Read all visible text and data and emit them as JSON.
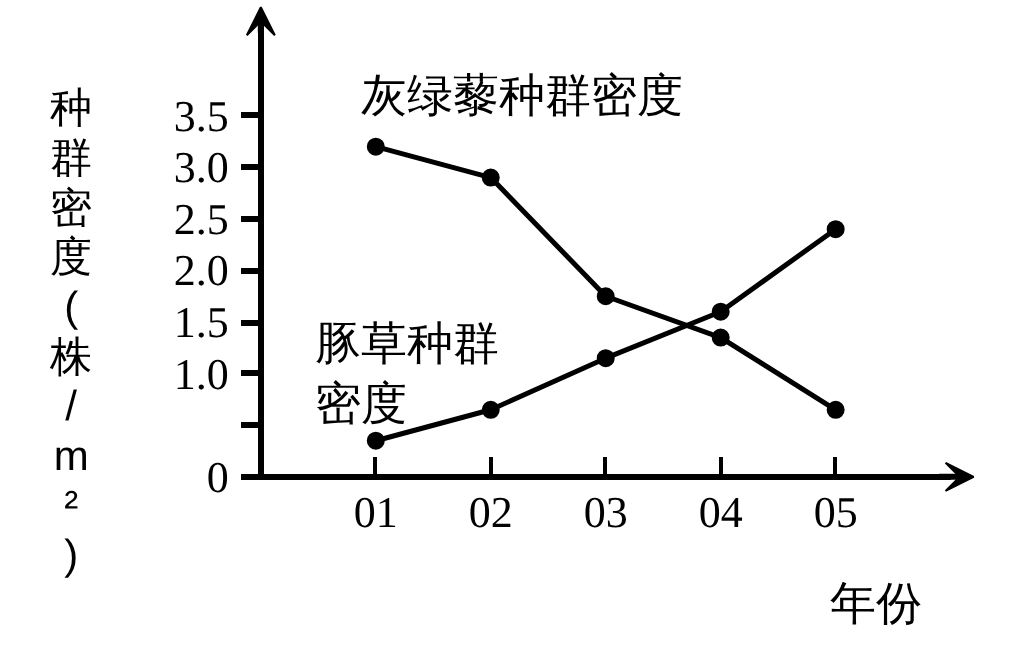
{
  "chart_data": {
    "type": "line",
    "xlabel": "年份",
    "ylabel": "种群密度(株/m²)",
    "categories": [
      "01",
      "02",
      "03",
      "04",
      "05"
    ],
    "series": [
      {
        "name": "灰绿藜种群密度",
        "color": "#000000",
        "values": [
          3.2,
          2.9,
          1.75,
          1.35,
          0.65
        ]
      },
      {
        "name": "豚草种群密度",
        "color": "#000000",
        "values": [
          0.35,
          0.65,
          1.15,
          1.6,
          2.4
        ]
      }
    ],
    "ylim": [
      0,
      4.4
    ],
    "yticks": [
      0,
      {
        "value": 0.5,
        "label": null
      },
      {
        "value": 1,
        "label": "1.0"
      },
      1.5,
      {
        "value": 2,
        "label": "2.0"
      },
      2.5,
      {
        "value": 3,
        "label": "3.0"
      },
      3.5
    ],
    "marker": "circle",
    "line_style": "solid"
  }
}
